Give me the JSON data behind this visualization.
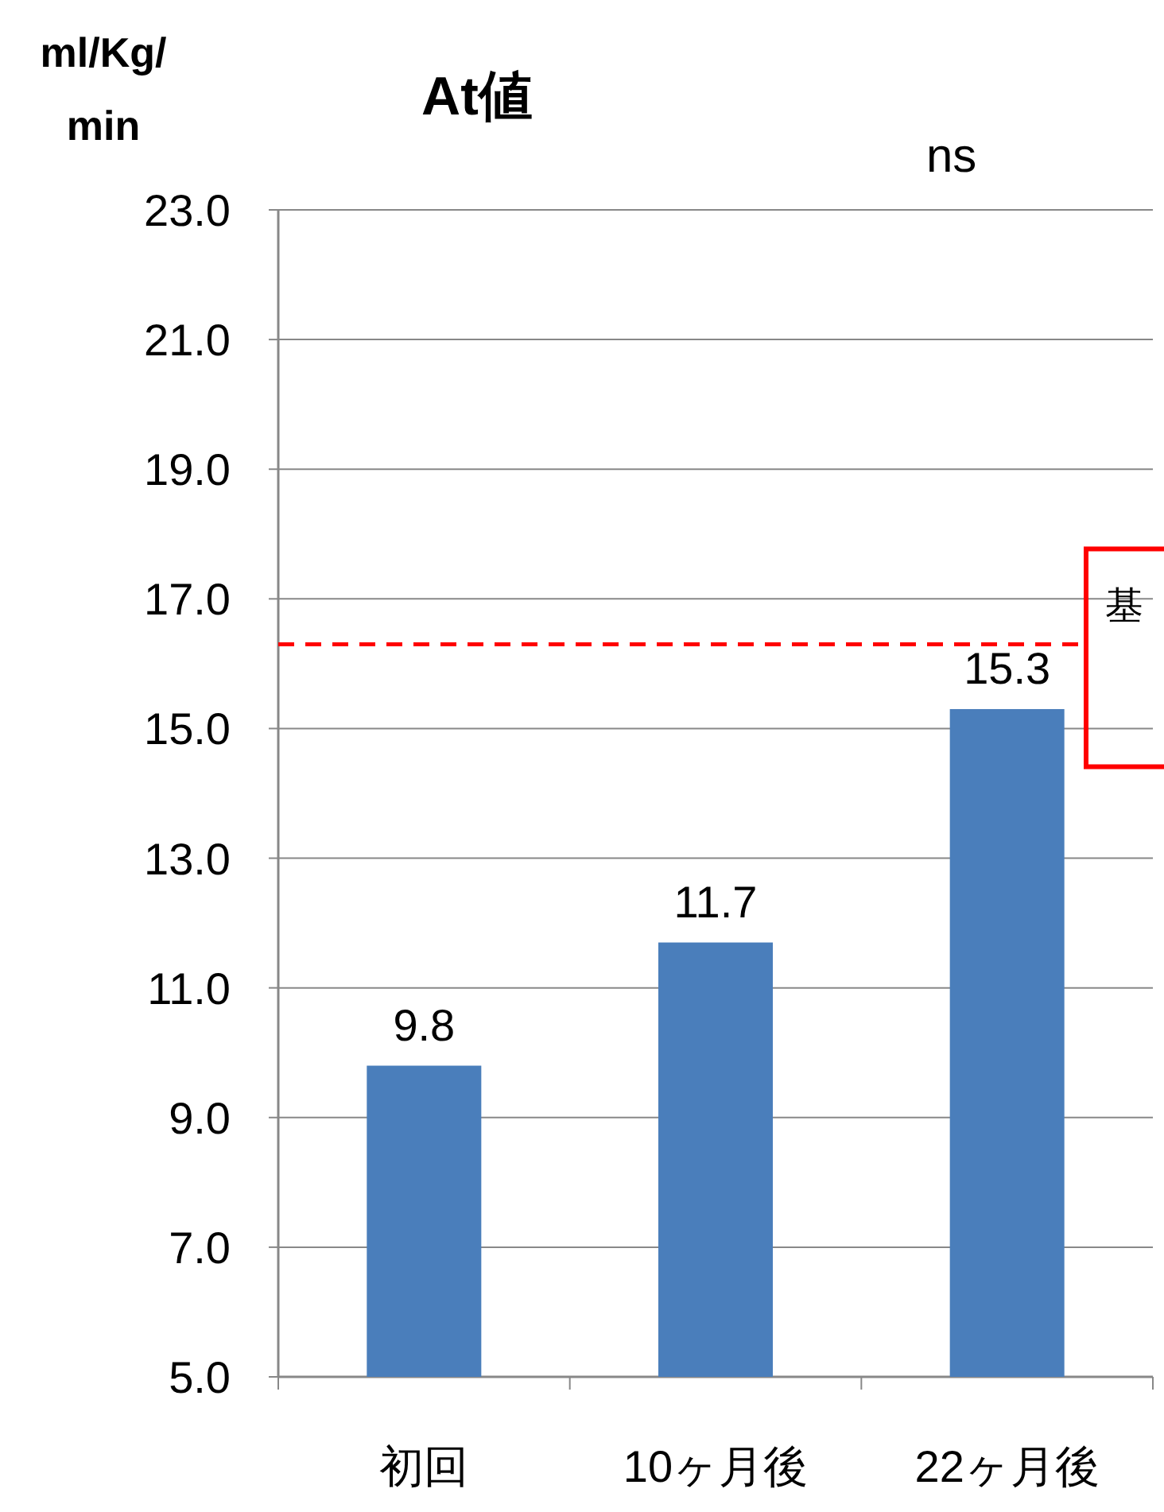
{
  "chart_data": {
    "type": "bar",
    "title": "At値",
    "ylabel": "ml/Kg/min",
    "categories": [
      "初回",
      "10ヶ月後",
      "22ヶ月後"
    ],
    "values": [
      9.8,
      11.7,
      15.3
    ],
    "color": "#4a7ebb",
    "ylim": [
      5,
      23
    ],
    "yticks": [
      {
        "value": 5,
        "label": "5.0"
      },
      {
        "value": 7,
        "label": "7.0"
      },
      {
        "value": 9,
        "label": "9.0"
      },
      {
        "value": 11,
        "label": "11.0"
      },
      {
        "value": 13,
        "label": "13.0"
      },
      {
        "value": 15,
        "label": "15.0"
      },
      {
        "value": 17,
        "label": "17.0"
      },
      {
        "value": 19,
        "label": "19.0"
      },
      {
        "value": 21,
        "label": "21.0"
      },
      {
        "value": 23,
        "label": "23.0"
      }
    ],
    "grid": "y",
    "data_labels": true,
    "ref_lines": [
      {
        "axis": "y",
        "value": 16.3,
        "label": "基",
        "color": "#ff0000",
        "line_style": "dashed"
      }
    ],
    "annotations": [
      "ns"
    ]
  }
}
